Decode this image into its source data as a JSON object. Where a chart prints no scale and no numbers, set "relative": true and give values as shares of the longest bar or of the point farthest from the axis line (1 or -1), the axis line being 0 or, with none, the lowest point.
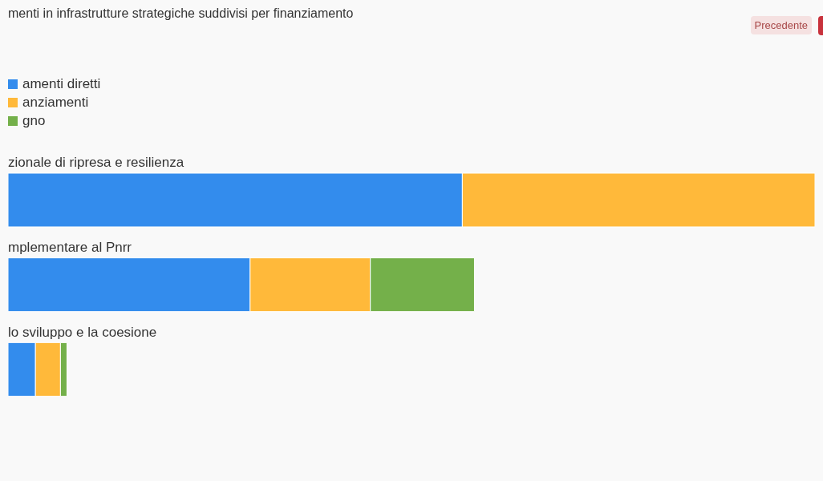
{
  "chart_data": {
    "type": "bar",
    "orientation": "horizontal",
    "stacked": true,
    "relative": true,
    "title": "menti in infrastrutture strategiche suddivisi per finanziamento",
    "categories": [
      "zionale di ripresa e resilienza",
      "mplementare al Pnrr",
      "lo sviluppo e la coesione"
    ],
    "series": [
      {
        "name": "amenti diretti",
        "color": "#338ced",
        "values": [
          0.563,
          0.3,
          0.034
        ]
      },
      {
        "name": "anziamenti",
        "color": "#ffb93a",
        "values": [
          0.437,
          0.149,
          0.031
        ]
      },
      {
        "name": "gno",
        "color": "#74b04a",
        "values": [
          null,
          0.129,
          0.008
        ]
      }
    ],
    "legend": "top left",
    "annotations": [
      "Precedente"
    ]
  }
}
